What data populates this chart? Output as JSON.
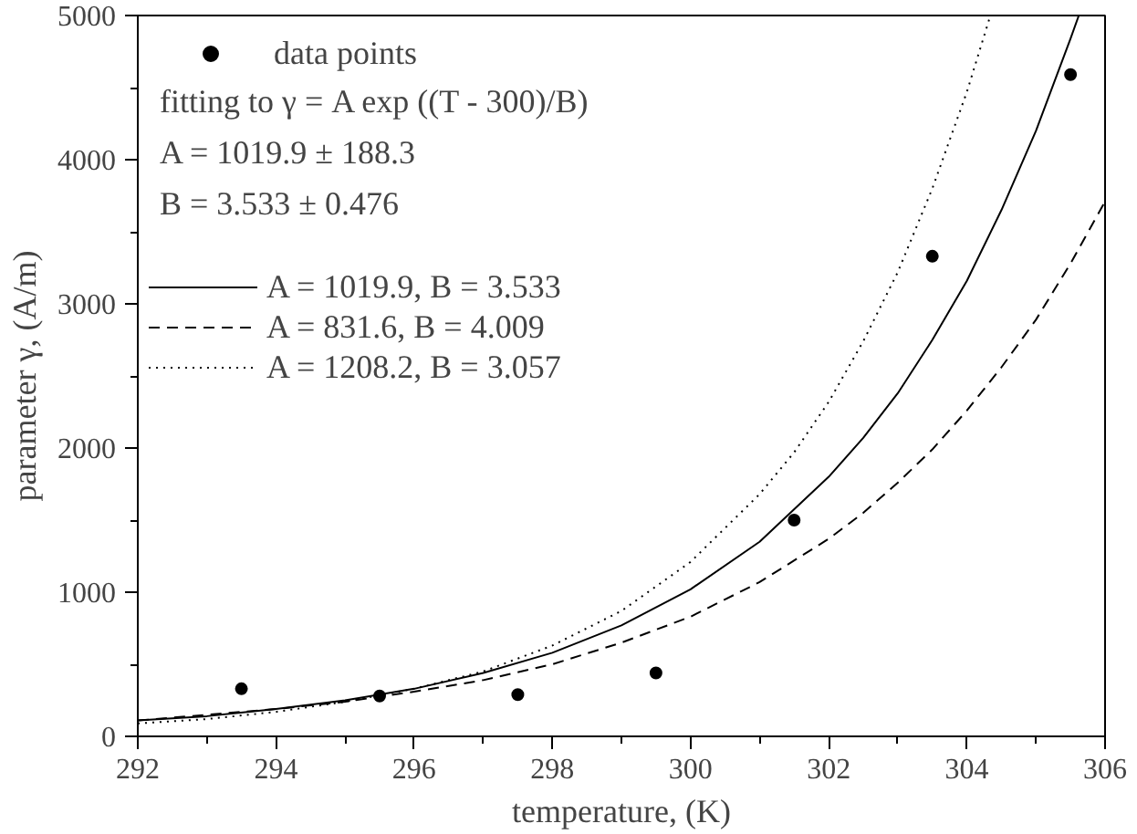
{
  "chart_data": {
    "type": "line",
    "xlabel": "temperature, (K)",
    "ylabel": "parameter γ, (A/m)",
    "xlim": [
      292,
      306
    ],
    "ylim": [
      0,
      5000
    ],
    "xticks": [
      292,
      294,
      296,
      298,
      300,
      302,
      304,
      306
    ],
    "yticks": [
      0,
      1000,
      2000,
      3000,
      4000,
      5000
    ],
    "grid": false,
    "legend": "top left",
    "annotations": [
      "fitting to γ = A exp ((T - 300)/B)",
      "A = 1019.9 ± 188.3",
      "B = 3.533 ± 0.476"
    ],
    "series": [
      {
        "name": "data points",
        "type": "scatter",
        "marker": "circle",
        "color": "#000000",
        "x": [
          293.5,
          295.5,
          297.5,
          299.5,
          301.5,
          303.5,
          305.5
        ],
        "values": [
          330,
          280,
          290,
          440,
          1500,
          3330,
          4590
        ]
      },
      {
        "name": "A = 1019.9, B = 3.533",
        "line_style": "solid",
        "color": "#000000",
        "x": [
          292,
          293,
          294,
          295,
          296,
          297,
          298,
          299,
          300,
          301,
          302,
          302.5,
          303,
          303.5,
          304,
          304.5,
          305,
          305.5,
          305.62
        ],
        "values": [
          110,
          140,
          190,
          250,
          330,
          440,
          580,
          770,
          1020,
          1350,
          1800,
          2070,
          2380,
          2750,
          3160,
          3650,
          4200,
          4840,
          5000
        ]
      },
      {
        "name": "A = 831.6, B = 4.009",
        "line_style": "dashed",
        "color": "#000000",
        "x": [
          292,
          293,
          294,
          295,
          296,
          297,
          298,
          299,
          300,
          301,
          302,
          302.5,
          303,
          303.5,
          304,
          304.5,
          305,
          305.5,
          306
        ],
        "values": [
          110,
          150,
          190,
          240,
          310,
          390,
          500,
          650,
          830,
          1070,
          1370,
          1550,
          1760,
          1990,
          2260,
          2560,
          2890,
          3280,
          3710
        ]
      },
      {
        "name": "A = 1208.2, B = 3.057",
        "line_style": "dotted",
        "color": "#000000",
        "x": [
          292,
          293,
          294,
          295,
          296,
          297,
          298,
          299,
          300,
          301,
          301.5,
          302,
          302.5,
          303,
          303.5,
          304,
          304.34
        ],
        "values": [
          90,
          120,
          170,
          240,
          330,
          450,
          630,
          870,
          1210,
          1680,
          1970,
          2320,
          2740,
          3220,
          3800,
          4470,
          5000
        ]
      }
    ]
  }
}
